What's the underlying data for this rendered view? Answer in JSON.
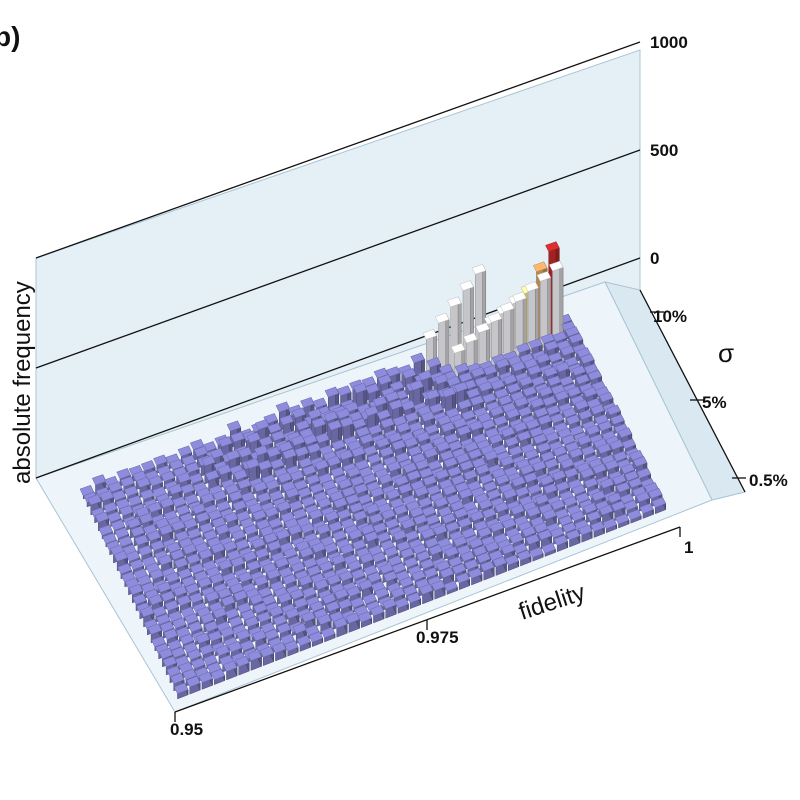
{
  "panel_label": "b)",
  "colors": {
    "wall": "#e4eff6",
    "floor": "#eef5fa",
    "bar_base": "#7f7dc4",
    "bar_white": "#f1f1f6",
    "bar_yellow": "#f3e89a",
    "bar_orange": "#e2a560",
    "bar_red": "#c42a2a"
  },
  "chart_data": {
    "type": "3d-bar-histogram",
    "zlabel": "absolute frequency",
    "xlabel": "fidelity",
    "ylabel": "σ",
    "z_ticks": [
      "1000",
      "500",
      "0"
    ],
    "x_ticks": [
      "0.95",
      "0.975",
      "1"
    ],
    "y_ticks": [
      "10%",
      "5%",
      "0.5%"
    ],
    "zlim": [
      0,
      1000
    ],
    "xlim": [
      0.95,
      1
    ],
    "ylim": [
      "0.5%",
      "10%"
    ],
    "highlighted_bars": [
      {
        "fidelity_bin": 38,
        "sigma": "0.5%",
        "color": "red",
        "value": 430
      },
      {
        "fidelity_bin": 37,
        "sigma": "0.5%",
        "color": "orange",
        "value": 350
      },
      {
        "fidelity_bin": 36,
        "sigma": "0.5%",
        "color": "yellow",
        "value": 260
      },
      {
        "fidelity_bin": 35,
        "sigma": "0.5%",
        "color": "white",
        "value": 230
      },
      {
        "fidelity_bin": 34,
        "sigma": "0.5%",
        "color": "white",
        "value": 200
      },
      {
        "fidelity_bin": 33,
        "sigma": "0.5%",
        "color": "white",
        "value": 170
      }
    ],
    "grid": false
  }
}
